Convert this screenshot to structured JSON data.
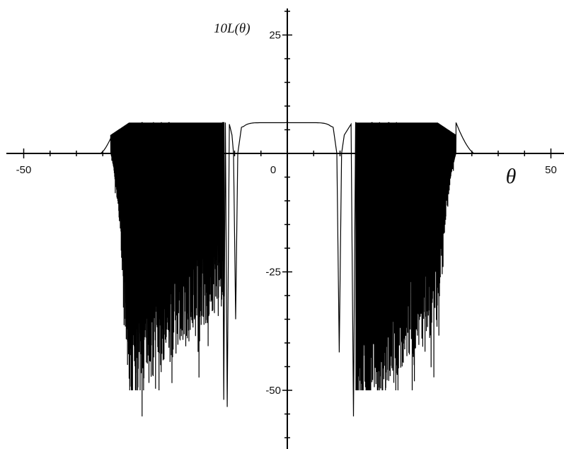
{
  "chart_data": {
    "type": "line",
    "title": "",
    "xlabel": "θ",
    "ylabel": "10L(θ)",
    "xlim": [
      -55,
      58
    ],
    "ylim": [
      -62,
      31
    ],
    "x_ticks": [
      -50,
      0,
      50
    ],
    "x_tick_labels": [
      "-50",
      "0",
      "50"
    ],
    "y_ticks": [
      25,
      -25,
      -50
    ],
    "y_tick_labels": [
      "25",
      "-25",
      "-50"
    ],
    "grid": false,
    "legend": "none",
    "color": "#000000",
    "plateau_level": 6.5,
    "main_lobe": [
      -10.5,
      10.5
    ],
    "band_left": [
      -32,
      -12
    ],
    "band_right": [
      13,
      32
    ],
    "sample_points": [
      {
        "x": -40,
        "y": 0
      },
      {
        "x": -30,
        "y": 6.5
      },
      {
        "x": -25,
        "y": -45
      },
      {
        "x": -23,
        "y": -55
      },
      {
        "x": -13,
        "y": -53
      },
      {
        "x": -5,
        "y": 6.5
      },
      {
        "x": 0,
        "y": 6.5
      },
      {
        "x": 5,
        "y": 6.5
      },
      {
        "x": 12,
        "y": -42
      },
      {
        "x": 14,
        "y": -55
      },
      {
        "x": 22,
        "y": -48
      },
      {
        "x": 30,
        "y": 6.5
      },
      {
        "x": 40,
        "y": 0
      }
    ]
  }
}
